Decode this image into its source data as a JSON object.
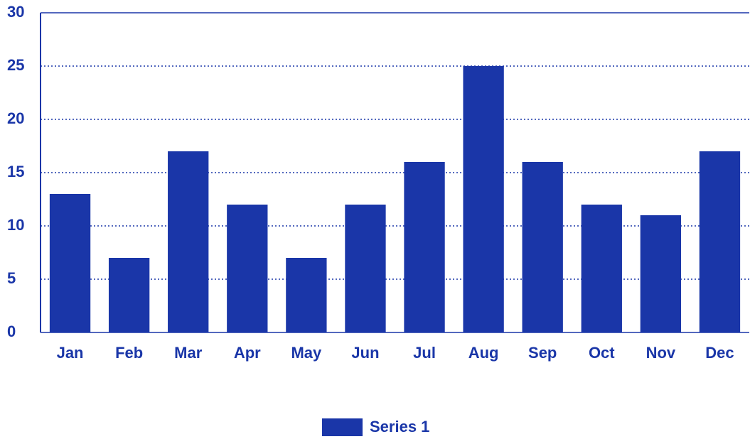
{
  "chart_data": {
    "type": "bar",
    "categories": [
      "Jan",
      "Feb",
      "Mar",
      "Apr",
      "May",
      "Jun",
      "Jul",
      "Aug",
      "Sep",
      "Oct",
      "Nov",
      "Dec"
    ],
    "series": [
      {
        "name": "Series 1",
        "color": "#1a36a8",
        "values": [
          13,
          7,
          17,
          12,
          7,
          12,
          16,
          25,
          16,
          12,
          11,
          17
        ]
      }
    ],
    "ylim": [
      0,
      30
    ],
    "yticks": [
      0,
      5,
      10,
      15,
      20,
      25,
      30
    ],
    "grid": true,
    "legend": "bottom"
  }
}
